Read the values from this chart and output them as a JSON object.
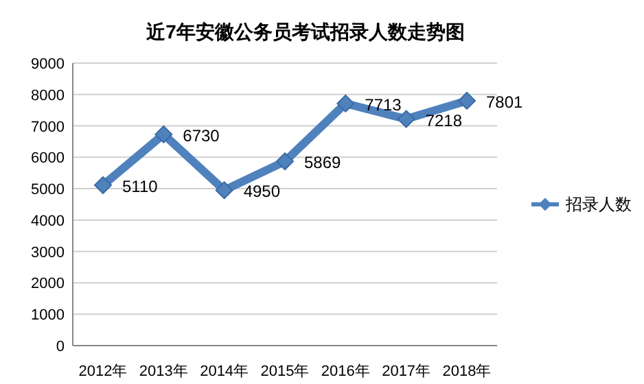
{
  "chart_data": {
    "type": "line",
    "title": "近7年安徽公务员考试招录人数走势图",
    "categories": [
      "2012年",
      "2013年",
      "2014年",
      "2015年",
      "2016年",
      "2017年",
      "2018年"
    ],
    "series": [
      {
        "name": "招录人数",
        "color": "#4f81bd",
        "values": [
          5110,
          6730,
          4950,
          5869,
          7713,
          7218,
          7801
        ]
      }
    ],
    "ylim": [
      0,
      9000
    ],
    "yticks": [
      0,
      1000,
      2000,
      3000,
      4000,
      5000,
      6000,
      7000,
      8000,
      9000
    ],
    "grid": "y",
    "legend": "right",
    "marker": "diamond",
    "data_labels": true
  }
}
